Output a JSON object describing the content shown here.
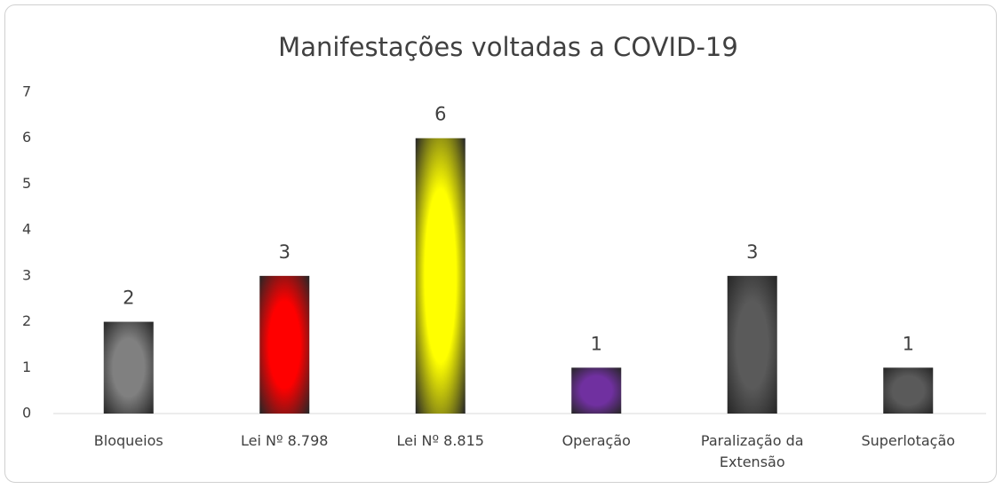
{
  "chart_data": {
    "type": "bar",
    "title": "Manifestações voltadas a COVID-19",
    "categories": [
      "Bloqueios",
      "Lei Nº 8.798",
      "Lei Nº 8.815",
      "Operação",
      "Paralização da Extensão",
      "Superlotação"
    ],
    "values": [
      2,
      3,
      6,
      1,
      3,
      1
    ],
    "colors": [
      "#808080",
      "#ff0000",
      "#ffff00",
      "#7030a0",
      "#5a5a5a",
      "#5a5a5a"
    ],
    "ylim": [
      0,
      7
    ],
    "yticks": [
      0,
      1,
      2,
      3,
      4,
      5,
      6,
      7
    ],
    "grid": false
  }
}
